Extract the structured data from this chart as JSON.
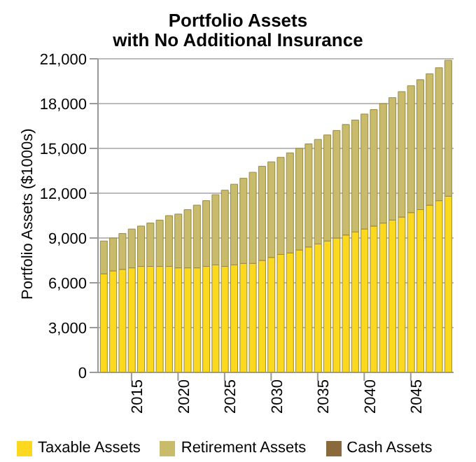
{
  "chart_data": {
    "type": "bar",
    "title": "Portfolio Assets\nwith No Additional Insurance",
    "ylabel": "Portfolio Assets ($1000s)",
    "x": [
      2012,
      2013,
      2014,
      2015,
      2016,
      2017,
      2018,
      2019,
      2020,
      2021,
      2022,
      2023,
      2024,
      2025,
      2026,
      2027,
      2028,
      2029,
      2030,
      2031,
      2032,
      2033,
      2034,
      2035,
      2036,
      2037,
      2038,
      2039,
      2040,
      2041,
      2042,
      2043,
      2044,
      2045,
      2046,
      2047,
      2048,
      2049
    ],
    "xlim": [
      2011.4,
      2049.6
    ],
    "xticks": [
      2015,
      2020,
      2025,
      2030,
      2035,
      2040,
      2045
    ],
    "ylim": [
      0,
      21000
    ],
    "yticks": [
      0,
      {
        "value": 3000,
        "label": "3,000"
      },
      {
        "value": 6000,
        "label": "6,000"
      },
      {
        "value": 9000,
        "label": "9,000"
      },
      {
        "value": 12000,
        "label": "12,000"
      },
      {
        "value": 15000,
        "label": "15,000"
      },
      {
        "value": 18000,
        "label": "18,000"
      },
      {
        "value": 21000,
        "label": "21,000"
      }
    ],
    "stacked": true,
    "grid": "y",
    "legend": "bottom",
    "series": [
      {
        "name": "Taxable Assets",
        "color": "#fcd81e",
        "values": [
          6600,
          6800,
          6900,
          7000,
          7100,
          7100,
          7100,
          7100,
          7000,
          7000,
          7000,
          7100,
          7200,
          7100,
          7200,
          7300,
          7300,
          7500,
          7700,
          7900,
          8000,
          8200,
          8400,
          8600,
          8800,
          9000,
          9200,
          9400,
          9600,
          9800,
          10000,
          10200,
          10400,
          10700,
          10900,
          11200,
          11500,
          11800
        ]
      },
      {
        "name": "Retirement Assets",
        "color": "#c9bb6c",
        "values": [
          2200,
          2200,
          2400,
          2600,
          2700,
          2900,
          3100,
          3400,
          3600,
          3900,
          4200,
          4400,
          4700,
          5100,
          5400,
          5700,
          6100,
          6300,
          6400,
          6500,
          6700,
          6800,
          6900,
          7000,
          7100,
          7200,
          7400,
          7500,
          7700,
          7800,
          8000,
          8200,
          8400,
          8500,
          8700,
          8800,
          8900,
          9100
        ]
      },
      {
        "name": "Cash Assets",
        "color": "#8a6a3c",
        "values": [
          0,
          0,
          0,
          0,
          0,
          0,
          0,
          0,
          0,
          0,
          0,
          0,
          0,
          0,
          0,
          0,
          0,
          0,
          0,
          0,
          0,
          0,
          0,
          0,
          0,
          0,
          0,
          0,
          0,
          0,
          0,
          0,
          0,
          0,
          0,
          0,
          0,
          0
        ]
      }
    ]
  }
}
